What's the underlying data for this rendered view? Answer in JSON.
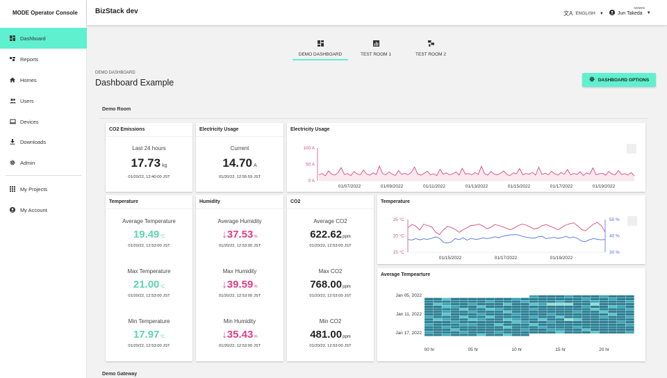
{
  "sidebar": {
    "brand": "MODE Operator Console",
    "items": [
      {
        "label": "Dashboard",
        "icon": "dashboard-icon"
      },
      {
        "label": "Reports",
        "icon": "reports-icon"
      },
      {
        "label": "Homes",
        "icon": "home-icon"
      },
      {
        "label": "Users",
        "icon": "users-icon"
      },
      {
        "label": "Devices",
        "icon": "devices-icon"
      },
      {
        "label": "Downloads",
        "icon": "download-icon"
      },
      {
        "label": "Admin",
        "icon": "gear-icon"
      }
    ],
    "secondary": [
      {
        "label": "My Projects",
        "icon": "grid-icon"
      },
      {
        "label": "My Account",
        "icon": "account-icon"
      }
    ]
  },
  "header": {
    "app_title": "BizStack dev",
    "language": "ENGLISH",
    "user_role": "ADMIN",
    "user_name": "Jun Takeda"
  },
  "tabs": [
    {
      "label": "DEMO DASHBOARD",
      "icon": "dashboard-icon"
    },
    {
      "label": "TEST ROOM 1",
      "icon": "bar-chart-icon"
    },
    {
      "label": "TEST ROOM 2",
      "icon": "device-hub-icon"
    }
  ],
  "page": {
    "breadcrumb": "DEMO DASHBOARD",
    "title": "Dashboard Example",
    "options_button": "DASHBOARD OPTIONS",
    "section": "Demo Room",
    "next_section": "Demo Gateway"
  },
  "cards": {
    "co2_emissions": {
      "title": "CO2 Emissions",
      "label": "Last 24 hours",
      "value": "17.73",
      "unit": "kg",
      "timestamp": "01/20/22, 12:40:00 JST"
    },
    "electricity_usage_current": {
      "title": "Electricity Usage",
      "label": "Current",
      "value": "14.70",
      "unit": "A",
      "timestamp": "01/20/22, 12:55:59 JST"
    },
    "temperature": {
      "title": "Temperature",
      "stats": [
        {
          "label": "Average Temperature",
          "value": "19.49",
          "unit": "°C",
          "timestamp": "01/20/22, 12:53:00 JST"
        },
        {
          "label": "Max Temperature",
          "value": "21.00",
          "unit": "°C",
          "timestamp": "01/20/22, 12:53:00 JST"
        },
        {
          "label": "Min Temperature",
          "value": "17.97",
          "unit": "°C",
          "timestamp": "01/20/22, 12:53:00 JST"
        }
      ]
    },
    "humidity": {
      "title": "Humidity",
      "stats": [
        {
          "label": "Average Humidity",
          "value": "37.53",
          "unit": "%",
          "timestamp": "01/20/22, 12:53:00 JST"
        },
        {
          "label": "Max Humidity",
          "value": "39.59",
          "unit": "%",
          "timestamp": "01/20/22, 12:53:00 JST"
        },
        {
          "label": "Min Humidity",
          "value": "35.43",
          "unit": "%",
          "timestamp": "01/20/22, 12:53:00 JST"
        }
      ]
    },
    "co2": {
      "title": "CO2",
      "stats": [
        {
          "label": "Average CO2",
          "value": "622.62",
          "unit": "ppm",
          "timestamp": "01/20/22, 12:53:00 JST"
        },
        {
          "label": "Max CO2",
          "value": "768.00",
          "unit": "ppm",
          "timestamp": "01/20/22, 12:53:00 JST"
        },
        {
          "label": "Min CO2",
          "value": "481.00",
          "unit": "ppm",
          "timestamp": "01/20/22, 12:53:00 JST"
        }
      ]
    },
    "electricity_chart_title": "Electricity Usage",
    "temperature_chart_title": "Temperature",
    "heatmap_title": "Average Tempearture"
  },
  "chart_data": [
    {
      "type": "area",
      "title": "Electricity Usage",
      "y_ticks": [
        "100 A",
        "50 A",
        "0 A"
      ],
      "ylim": [
        0,
        100
      ],
      "x_ticks": [
        "01/07/2022",
        "01/09/2022",
        "01/11/2022",
        "01/13/2022",
        "01/15/2022",
        "01/17/2022",
        "01/19/2022"
      ],
      "color": "#d64b7e",
      "series": [
        {
          "values": [
            18,
            22,
            15,
            30,
            20,
            17,
            25,
            40,
            19,
            22,
            16,
            28,
            21,
            18,
            33,
            20,
            17,
            24,
            19,
            45,
            22,
            18,
            27,
            20,
            16,
            31,
            19,
            23,
            18,
            26,
            42,
            20,
            17,
            22,
            29,
            18,
            21,
            16,
            35,
            20,
            24,
            18,
            21,
            27,
            17,
            38,
            20,
            22,
            18,
            25,
            19,
            44,
            21,
            17,
            28,
            20,
            18,
            23,
            30,
            19,
            16,
            24,
            21,
            37,
            18,
            22,
            20,
            26,
            17,
            41,
            19,
            23,
            18,
            29,
            21,
            17,
            25,
            20,
            34,
            18,
            22,
            19,
            27,
            16,
            24,
            20,
            39,
            18,
            21,
            23,
            17,
            28,
            20,
            18,
            31,
            19,
            22,
            17,
            25,
            15
          ]
        }
      ]
    },
    {
      "type": "line",
      "title": "Temperature",
      "x_ticks": [
        "01/15/2022",
        "01/17/2022",
        "01/19/2022"
      ],
      "left_axis": {
        "ticks": [
          "25 °C",
          "20 °C",
          "15 °C"
        ],
        "range": [
          15,
          25
        ],
        "color": "#d64b7e"
      },
      "right_axis": {
        "ticks": [
          "50 %",
          "40 %",
          "30 %"
        ],
        "range": [
          30,
          50
        ],
        "color": "#4a6fe0"
      },
      "series": [
        {
          "axis": "left",
          "color": "#d64b7e",
          "values": [
            22.5,
            23.5,
            23,
            21.8,
            23.6,
            23.2,
            22.8,
            21.2,
            20.4,
            21.8,
            22.9,
            22.6,
            22,
            21.1,
            21.9,
            22.5,
            23.2,
            23.3,
            23.6,
            23.1,
            22.2,
            22.6,
            23.5,
            23.2,
            22.8,
            22.3,
            21.9,
            22.5,
            23.2,
            23.6,
            23.3,
            22.7,
            22.1,
            22.4,
            23.1,
            23.5,
            23,
            22.5,
            21.9,
            22.6,
            23.3,
            23.7,
            24,
            23.1,
            22,
            21.5,
            22.6,
            23.6,
            24.1,
            23.2,
            21.2
          ]
        },
        {
          "axis": "right",
          "color": "#4a6fe0",
          "values": [
            37.8,
            37.5,
            38.3,
            37.6,
            38.2,
            37.9,
            38.5,
            39.4,
            38.7,
            36.1,
            35.6,
            36.3,
            38.4,
            37.7,
            38.9,
            37.4,
            38.5,
            37.9,
            38.1,
            38.8,
            38.4,
            38.7,
            39.5,
            38.9,
            39.8,
            40.2,
            40.6,
            40.8,
            40.6,
            39.8,
            39.2,
            38.8,
            38.6,
            39.4,
            39.8,
            38.4,
            38.7,
            39.1,
            38.5,
            38.9,
            39.7,
            38.8,
            39.3,
            38.5,
            36.8,
            36.5,
            37.6,
            38.4,
            37.9,
            37.6,
            37.8
          ]
        }
      ]
    },
    {
      "type": "heatmap",
      "title": "Average Tempearture",
      "y_ticks": [
        "Jan 05, 2022",
        "Jan 11, 2022",
        "Jan 17, 2022"
      ],
      "x_ticks": [
        "00 hr",
        "05 hr",
        "10 hr",
        "15 hr",
        "20 hr"
      ],
      "rows": 16,
      "cols": 24,
      "colors": [
        "#2d7f93",
        "#3aa6b8",
        "#57c4c9",
        "#8fe0d6"
      ]
    }
  ]
}
